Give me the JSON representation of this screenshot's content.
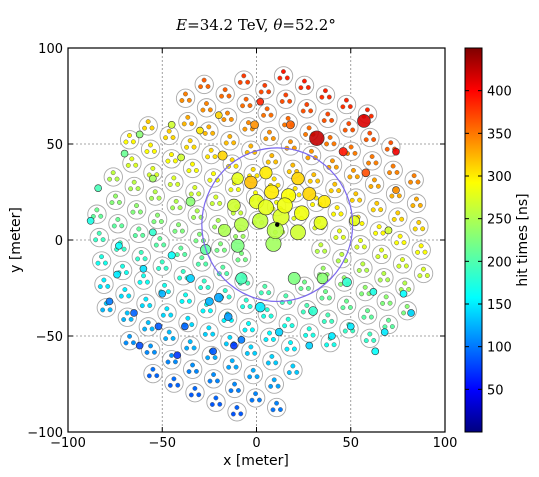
{
  "chart_data": {
    "type": "scatter",
    "title": {
      "energy_symbol": "E",
      "eq": "=",
      "energy_value": "34.2 TeV, ",
      "angle_symbol": "θ",
      "angle_value": "52.2°"
    },
    "xlabel": "x [meter]",
    "ylabel": "y [meter]",
    "xlim": [
      -100,
      100
    ],
    "ylim": [
      -100,
      100
    ],
    "xticks": [
      "−100",
      "−50",
      "0",
      "50",
      "100"
    ],
    "yticks": [
      "−100",
      "−50",
      "0",
      "50",
      "100"
    ],
    "grid": true,
    "colorbar": {
      "label": "hit times [ns]",
      "range": [
        0,
        450
      ],
      "ticks": [
        "50",
        "100",
        "150",
        "200",
        "250",
        "300",
        "350",
        "400"
      ],
      "colormap": "jet"
    },
    "shower_core": {
      "x": 11,
      "y": 8
    },
    "reference_circle": {
      "center_x": 11,
      "center_y": 8,
      "radius_m": 40,
      "color": "#7b68ee"
    },
    "hits": [
      {
        "x": -84,
        "y": 27,
        "t": 200
      },
      {
        "x": -70,
        "y": 45,
        "t": 215
      },
      {
        "x": -55,
        "y": 32,
        "t": 240
      },
      {
        "x": -40,
        "y": 43,
        "t": 260
      },
      {
        "x": -30,
        "y": 57,
        "t": 290
      },
      {
        "x": -18,
        "y": 44,
        "t": 300
      },
      {
        "x": -1,
        "y": 60,
        "t": 330
      },
      {
        "x": 2,
        "y": 72,
        "t": 380
      },
      {
        "x": 18,
        "y": 60,
        "t": 350
      },
      {
        "x": 32,
        "y": 53,
        "t": 420
      },
      {
        "x": 46,
        "y": 46,
        "t": 385
      },
      {
        "x": 57,
        "y": 62,
        "t": 410
      },
      {
        "x": 58,
        "y": 35,
        "t": 360
      },
      {
        "x": 74,
        "y": 46,
        "t": 400
      },
      {
        "x": 74,
        "y": 26,
        "t": 330
      },
      {
        "x": -74,
        "y": -18,
        "t": 160
      },
      {
        "x": -55,
        "y": 4,
        "t": 190
      },
      {
        "x": -35,
        "y": 20,
        "t": 230
      },
      {
        "x": -10,
        "y": 32,
        "t": 270
      },
      {
        "x": 5,
        "y": 35,
        "t": 290
      },
      {
        "x": 22,
        "y": 32,
        "t": 300
      },
      {
        "x": 36,
        "y": 20,
        "t": 290
      },
      {
        "x": 52,
        "y": 10,
        "t": 270
      },
      {
        "x": 70,
        "y": 5,
        "t": 260
      },
      {
        "x": 0,
        "y": 20,
        "t": 270
      },
      {
        "x": 8,
        "y": 25,
        "t": 290
      },
      {
        "x": 17,
        "y": 23,
        "t": 280
      },
      {
        "x": 24,
        "y": 14,
        "t": 275
      },
      {
        "x": -12,
        "y": 18,
        "t": 260
      },
      {
        "x": -8,
        "y": 8,
        "t": 250
      },
      {
        "x": 2,
        "y": 10,
        "t": 255
      },
      {
        "x": 13,
        "y": 12,
        "t": 265
      },
      {
        "x": 22,
        "y": 4,
        "t": 260
      },
      {
        "x": 28,
        "y": 24,
        "t": 300
      },
      {
        "x": -3,
        "y": 30,
        "t": 310
      },
      {
        "x": 34,
        "y": 9,
        "t": 270
      },
      {
        "x": -17,
        "y": 5,
        "t": 245
      },
      {
        "x": 9,
        "y": -2,
        "t": 240
      },
      {
        "x": 35,
        "y": -20,
        "t": 230
      },
      {
        "x": 20,
        "y": -20,
        "t": 225
      },
      {
        "x": -10,
        "y": -3,
        "t": 225
      },
      {
        "x": -27,
        "y": -5,
        "t": 210
      },
      {
        "x": -8,
        "y": -20,
        "t": 200
      },
      {
        "x": 30,
        "y": -37,
        "t": 190
      },
      {
        "x": 48,
        "y": -22,
        "t": 190
      },
      {
        "x": 62,
        "y": -27,
        "t": 180
      },
      {
        "x": 78,
        "y": -28,
        "t": 170
      },
      {
        "x": 68,
        "y": -48,
        "t": 160
      },
      {
        "x": 82,
        "y": -38,
        "t": 150
      },
      {
        "x": 50,
        "y": -45,
        "t": 160
      },
      {
        "x": 63,
        "y": -58,
        "t": 170
      },
      {
        "x": -73,
        "y": -3,
        "t": 170
      },
      {
        "x": -60,
        "y": -15,
        "t": 155
      },
      {
        "x": -45,
        "y": -8,
        "t": 170
      },
      {
        "x": -50,
        "y": -28,
        "t": 135
      },
      {
        "x": -35,
        "y": -20,
        "t": 150
      },
      {
        "x": -25,
        "y": -32,
        "t": 135
      },
      {
        "x": -15,
        "y": -40,
        "t": 125
      },
      {
        "x": -8,
        "y": -52,
        "t": 110
      },
      {
        "x": -12,
        "y": -55,
        "t": 80
      },
      {
        "x": -23,
        "y": -58,
        "t": 95
      },
      {
        "x": -38,
        "y": -45,
        "t": 100
      },
      {
        "x": -52,
        "y": -45,
        "t": 95
      },
      {
        "x": -65,
        "y": -38,
        "t": 100
      },
      {
        "x": -78,
        "y": -32,
        "t": 110
      },
      {
        "x": -62,
        "y": -55,
        "t": 90
      },
      {
        "x": -42,
        "y": -60,
        "t": 80
      },
      {
        "x": -20,
        "y": -30,
        "t": 130
      },
      {
        "x": 2,
        "y": -35,
        "t": 160
      },
      {
        "x": 12,
        "y": -48,
        "t": 150
      },
      {
        "x": 28,
        "y": -55,
        "t": 150
      },
      {
        "x": 40,
        "y": -50,
        "t": 160
      },
      {
        "x": -88,
        "y": 10,
        "t": 180
      },
      {
        "x": -62,
        "y": 55,
        "t": 230
      },
      {
        "x": -45,
        "y": 60,
        "t": 260
      },
      {
        "x": -20,
        "y": 65,
        "t": 300
      },
      {
        "x": 10,
        "y": 5,
        "t": 250
      },
      {
        "x": 15,
        "y": 18,
        "t": 275
      },
      {
        "x": 5,
        "y": 17,
        "t": 270
      }
    ]
  }
}
